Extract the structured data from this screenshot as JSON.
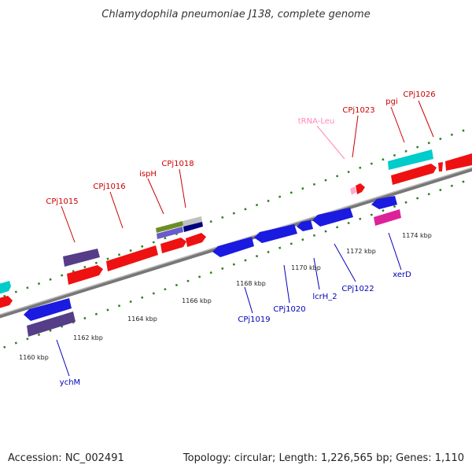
{
  "title": "Chlamydophila pneumoniae J138, complete genome",
  "footer": {
    "accession": "Accession: NC_002491",
    "topology": "Topology: circular; Length: 1,226,565 bp; Genes: 1,110"
  },
  "colors": {
    "forward_label": "#cc0000",
    "reverse_label": "#0000bb",
    "trna_label": "#ff88bb",
    "backbone": "#888888",
    "dots": "#2e7d1e"
  },
  "gene_labels": [
    {
      "text": "CPj1015",
      "strand": "forward"
    },
    {
      "text": "CPj1016",
      "strand": "forward"
    },
    {
      "text": "ispH",
      "strand": "forward"
    },
    {
      "text": "CPj1018",
      "strand": "forward"
    },
    {
      "text": "tRNA-Leu",
      "strand": "trna"
    },
    {
      "text": "CPj1023",
      "strand": "forward"
    },
    {
      "text": "pgi",
      "strand": "forward"
    },
    {
      "text": "CPj1026",
      "strand": "forward"
    },
    {
      "text": "ychM",
      "strand": "reverse"
    },
    {
      "text": "CPj1019",
      "strand": "reverse"
    },
    {
      "text": "CPj1020",
      "strand": "reverse"
    },
    {
      "text": "lcrH_2",
      "strand": "reverse"
    },
    {
      "text": "CPj1022",
      "strand": "reverse"
    },
    {
      "text": "xerD",
      "strand": "reverse"
    }
  ],
  "scale_labels": [
    "1160 kbp",
    "1162 kbp",
    "1164 kbp",
    "1166 kbp",
    "1168 kbp",
    "1170 kbp",
    "1172 kbp",
    "1174 kbp"
  ]
}
